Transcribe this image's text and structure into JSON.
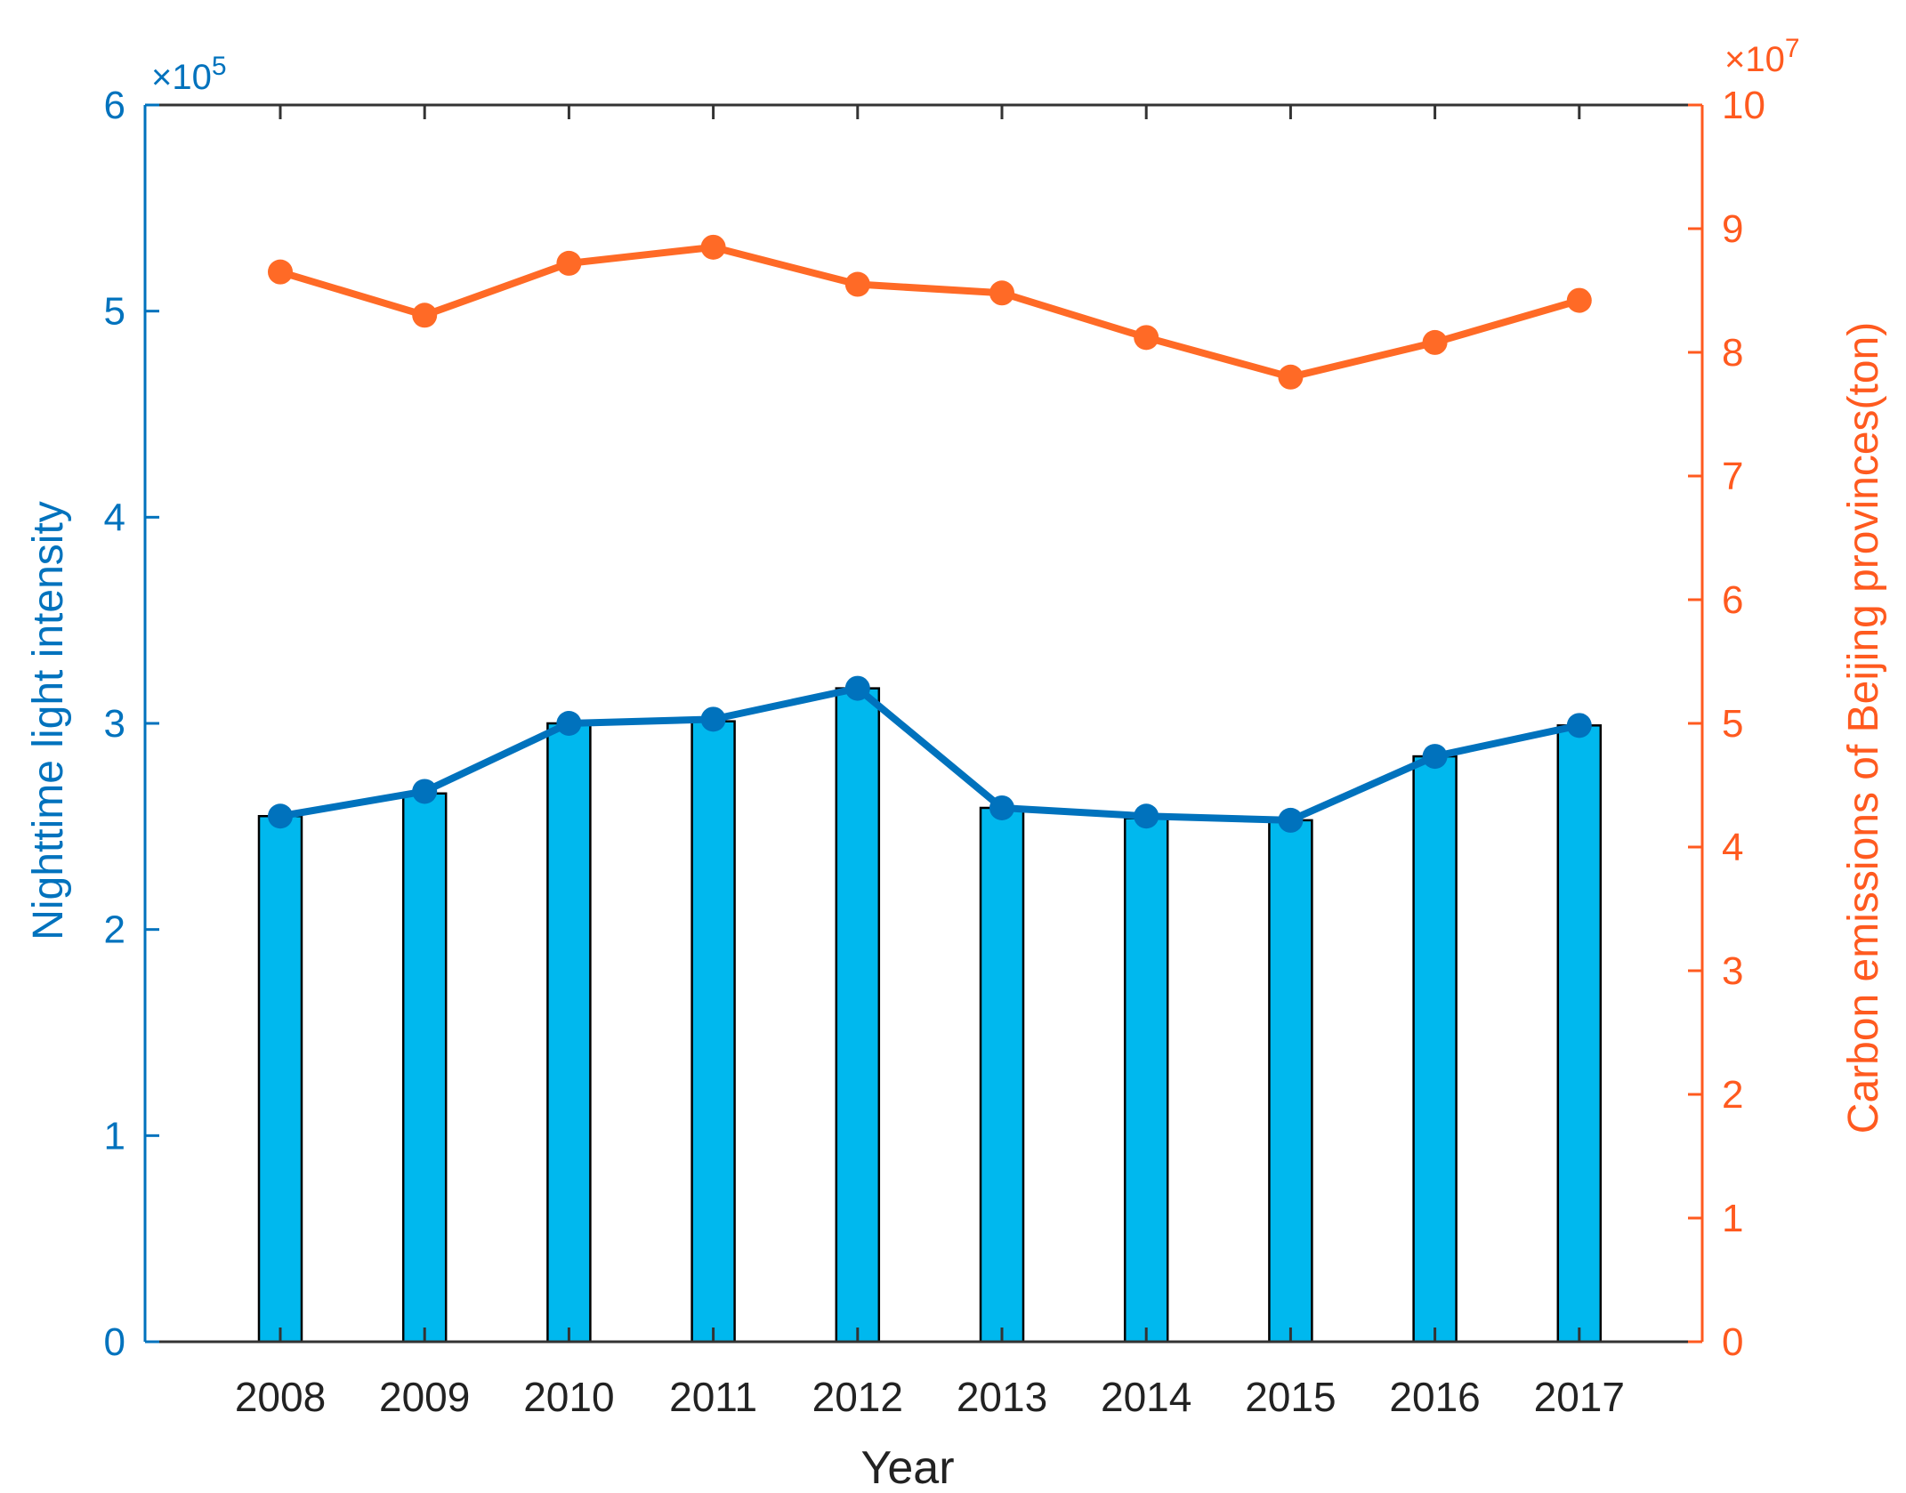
{
  "chart_data": {
    "type": "bar+line",
    "categories": [
      "2008",
      "2009",
      "2010",
      "2011",
      "2012",
      "2013",
      "2014",
      "2015",
      "2016",
      "2017"
    ],
    "xlabel": "Year",
    "left_axis": {
      "label": "Nighttime light intensity",
      "exponent_label": "×10",
      "exponent_power": "5",
      "ylim": [
        0,
        6
      ],
      "ticks": [
        "0",
        "1",
        "2",
        "3",
        "4",
        "5",
        "6"
      ],
      "color": "#0072BD"
    },
    "right_axis": {
      "label": "Carbon emissions of Beijing provinces(ton)",
      "exponent_label": "×10",
      "exponent_power": "7",
      "ylim": [
        0,
        10
      ],
      "ticks": [
        "0",
        "1",
        "2",
        "3",
        "4",
        "5",
        "6",
        "7",
        "8",
        "9",
        "10"
      ],
      "color": "#FF5A1F"
    },
    "series": [
      {
        "name": "Nighttime light intensity (bars)",
        "axis": "left",
        "kind": "bar",
        "color": "#00B8EE",
        "values": [
          2.55,
          2.66,
          3.0,
          3.01,
          3.17,
          2.59,
          2.54,
          2.53,
          2.84,
          2.99
        ]
      },
      {
        "name": "Nighttime light intensity (line)",
        "axis": "left",
        "kind": "line",
        "color": "#0072BD",
        "values": [
          2.55,
          2.67,
          3.0,
          3.02,
          3.17,
          2.59,
          2.55,
          2.53,
          2.84,
          2.99
        ]
      },
      {
        "name": "Carbon emissions",
        "axis": "right",
        "kind": "line",
        "color": "#FF6A26",
        "values": [
          8.65,
          8.3,
          8.72,
          8.85,
          8.55,
          8.48,
          8.12,
          7.8,
          8.08,
          8.42
        ]
      }
    ]
  }
}
